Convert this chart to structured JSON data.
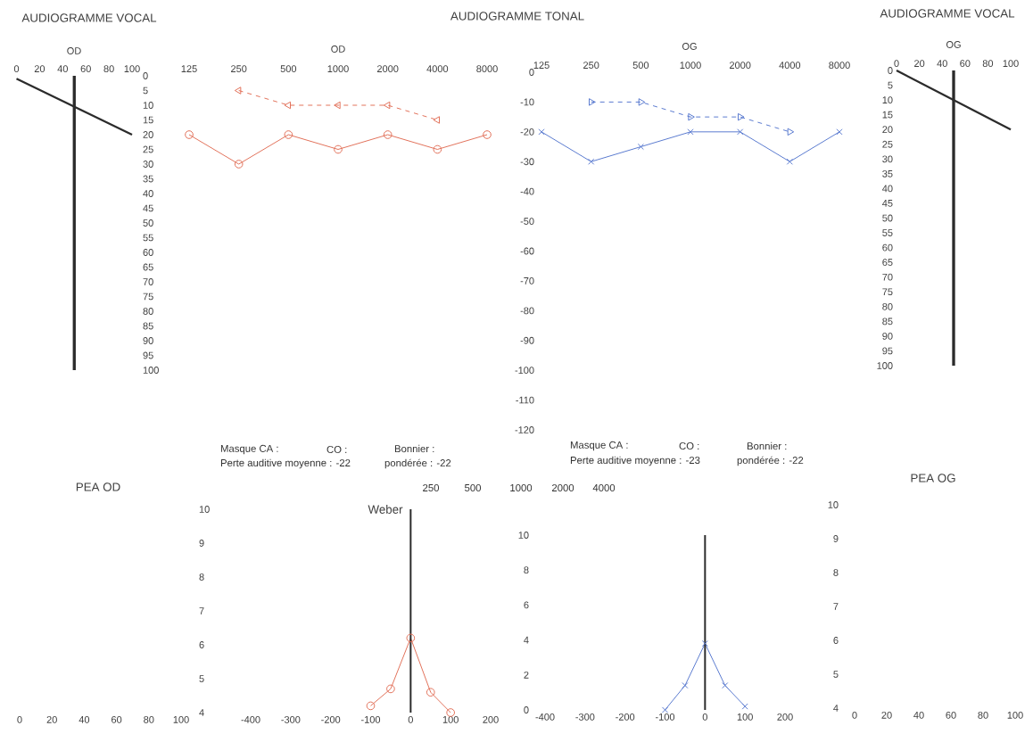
{
  "chart_data": [
    {
      "type": "line",
      "title": "AUDIOGRAMME VOCAL",
      "xlabel": "OD",
      "xlim": [
        0,
        100
      ],
      "xticks": [
        0,
        20,
        40,
        60,
        80,
        100
      ],
      "ylim": [
        100,
        0
      ],
      "yticks": [
        0,
        5,
        10,
        15,
        20,
        25,
        30,
        35,
        40,
        45,
        50,
        55,
        60,
        65,
        70,
        75,
        80,
        85,
        90,
        95,
        100
      ],
      "series": [
        {
          "color": "#2b2b2b",
          "x": [
            0,
            100
          ],
          "values": [
            1,
            20
          ]
        }
      ],
      "ref_lines": [
        {
          "axis": "x",
          "value": 50,
          "color": "#2b2b2b"
        }
      ]
    },
    {
      "type": "line",
      "title": "AUDIOGRAMME TONAL",
      "xlabel": "OD",
      "categories": [
        "125",
        "250",
        "500",
        "1000",
        "2000",
        "4000",
        "8000"
      ],
      "ylim": [
        100,
        0
      ],
      "tick_labels": "x",
      "series": [
        {
          "color": "#e2725b",
          "values": [
            20,
            30,
            20,
            25,
            20,
            25,
            20
          ],
          "marker": "circle",
          "line_style": "solid"
        },
        {
          "color": "#e2725b",
          "values": [
            null,
            5,
            10,
            10,
            10,
            15,
            null
          ],
          "marker": "triangle",
          "line_style": "dashed"
        }
      ],
      "annotations": [
        "Masque CA :",
        "CO :",
        "Bonnier :",
        "Perte auditive moyenne : -22",
        "pondérée : -22",
        "250",
        "500",
        "1000",
        "2000",
        "4000"
      ]
    },
    {
      "type": "line",
      "xlabel": "OG",
      "categories": [
        "125",
        "250",
        "500",
        "1000",
        "2000",
        "4000",
        "8000"
      ],
      "ylim": [
        -120,
        0
      ],
      "yticks": [
        0,
        -10,
        -20,
        -30,
        -40,
        -50,
        -60,
        -70,
        -80,
        -90,
        -100,
        -110,
        -120
      ],
      "series": [
        {
          "color": "#5b7bd0",
          "values": [
            -20,
            -30,
            -25,
            -20,
            -20,
            -30,
            -20
          ],
          "marker": "cross",
          "line_style": "solid"
        },
        {
          "color": "#5b7bd0",
          "values": [
            null,
            -10,
            -10,
            -15,
            -15,
            -20,
            null
          ],
          "marker": "triangle",
          "line_style": "dashed"
        }
      ],
      "annotations": [
        "Masque CA :",
        "CO :",
        "Bonnier :",
        "Perte auditive moyenne : -23",
        "pondérée : -22"
      ]
    },
    {
      "type": "line",
      "title": "AUDIOGRAMME VOCAL",
      "xlabel": "OG",
      "xlim": [
        0,
        100
      ],
      "xticks": [
        0,
        20,
        40,
        60,
        80,
        100
      ],
      "ylim": [
        100,
        0
      ],
      "yticks": [
        0,
        5,
        10,
        15,
        20,
        25,
        30,
        35,
        40,
        45,
        50,
        55,
        60,
        65,
        70,
        75,
        80,
        85,
        90,
        95,
        100
      ],
      "series": [
        {
          "color": "#2b2b2b",
          "x": [
            0,
            100
          ],
          "values": [
            0,
            20
          ]
        }
      ],
      "ref_lines": [
        {
          "axis": "x",
          "value": 50,
          "color": "#2b2b2b"
        }
      ]
    },
    {
      "type": "line",
      "title": "PEA OD",
      "xlim": [
        0,
        100
      ],
      "xticks": [
        0,
        20,
        40,
        60,
        80,
        100
      ],
      "ylim": [
        4,
        10
      ],
      "yticks": [
        4,
        5,
        6,
        7,
        8,
        9,
        10
      ]
    },
    {
      "type": "line",
      "title": "Weber",
      "xlim": [
        -400,
        200
      ],
      "xticks": [
        -400,
        -300,
        -200,
        -100,
        0,
        100,
        200
      ],
      "ylim": [
        4,
        10
      ],
      "tick_labels": "x",
      "ref_lines": [
        {
          "axis": "x",
          "value": 0,
          "color": "#2b2b2b"
        }
      ],
      "series": [
        {
          "color": "#e2725b",
          "x": [
            -100,
            -50,
            0,
            50,
            100
          ],
          "values": [
            4.2,
            4.7,
            6.2,
            4.6,
            4.0
          ],
          "marker": "circle",
          "line_style": "solid"
        }
      ]
    },
    {
      "type": "line",
      "xlim": [
        -400,
        200
      ],
      "xticks": [
        -400,
        -300,
        -200,
        -100,
        0,
        100,
        200
      ],
      "ylim": [
        0,
        10
      ],
      "yticks": [
        0,
        2,
        4,
        6,
        8,
        10
      ],
      "ref_lines": [
        {
          "axis": "x",
          "value": 0,
          "color": "#2b2b2b"
        }
      ],
      "series": [
        {
          "color": "#5b7bd0",
          "x": [
            -100,
            -50,
            0,
            50,
            100
          ],
          "values": [
            0,
            1.4,
            3.8,
            1.4,
            0.2
          ],
          "marker": "cross",
          "line_style": "solid"
        }
      ]
    },
    {
      "type": "line",
      "title": "PEA OG",
      "xlim": [
        0,
        100
      ],
      "xticks": [
        0,
        20,
        40,
        60,
        80,
        100
      ],
      "ylim": [
        4,
        10
      ],
      "yticks": [
        4,
        5,
        6,
        7,
        8,
        9,
        10
      ]
    }
  ]
}
